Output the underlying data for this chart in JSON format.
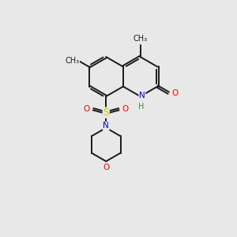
{
  "bg_color": "#e8e8e8",
  "bond_color": "#1a1a1a",
  "atom_colors": {
    "N": "#0000ff",
    "O": "#ff0000",
    "S": "#cccc00",
    "C": "#1a1a1a",
    "H": "#2a9a2a"
  },
  "lw": 1.4,
  "fs": 7.5
}
